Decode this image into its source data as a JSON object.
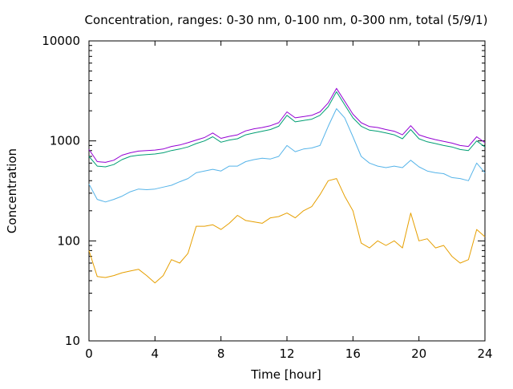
{
  "chart_data": {
    "type": "line",
    "title": "Concentration, ranges: 0-30 nm, 0-100 nm, 0-300 nm, total (5/9/1)",
    "xlabel": "Time [hour]",
    "ylabel": "Concentration",
    "xlim": [
      0,
      24
    ],
    "ylim": [
      10,
      10000
    ],
    "yscale": "log",
    "grid": false,
    "legend": "none",
    "x_ticks": [
      0,
      4,
      8,
      12,
      16,
      20,
      24
    ],
    "x_tick_labels": [
      "0",
      "4",
      "8",
      "12",
      "16",
      "20",
      "24"
    ],
    "y_ticks": [
      10,
      100,
      1000,
      10000
    ],
    "y_tick_labels": [
      "10",
      "100",
      "1000",
      "10000"
    ],
    "x": [
      0,
      0.5,
      1,
      1.5,
      2,
      2.5,
      3,
      3.5,
      4,
      4.5,
      5,
      5.5,
      6,
      6.5,
      7,
      7.5,
      8,
      8.5,
      9,
      9.5,
      10,
      10.5,
      11,
      11.5,
      12,
      12.5,
      13,
      13.5,
      14,
      14.5,
      15,
      15.5,
      16,
      16.5,
      17,
      17.5,
      18,
      18.5,
      19,
      19.5,
      20,
      20.5,
      21,
      21.5,
      22,
      22.5,
      23,
      23.5,
      24
    ],
    "series": [
      {
        "color": "#e69f00",
        "values": [
          80,
          44,
          43,
          45,
          48,
          50,
          52,
          45,
          38,
          45,
          65,
          60,
          75,
          140,
          140,
          145,
          130,
          150,
          180,
          160,
          155,
          150,
          170,
          175,
          190,
          170,
          200,
          220,
          290,
          400,
          420,
          280,
          200,
          95,
          85,
          100,
          90,
          100,
          85,
          190,
          100,
          105,
          85,
          90,
          70,
          60,
          65,
          130,
          110
        ]
      },
      {
        "color": "#56b4e9",
        "values": [
          370,
          260,
          245,
          260,
          280,
          310,
          330,
          325,
          330,
          345,
          360,
          390,
          420,
          480,
          500,
          520,
          500,
          560,
          560,
          620,
          650,
          670,
          660,
          700,
          900,
          780,
          830,
          850,
          900,
          1400,
          2100,
          1700,
          1100,
          700,
          600,
          560,
          540,
          560,
          540,
          640,
          550,
          500,
          480,
          470,
          430,
          420,
          400,
          600,
          480
        ]
      },
      {
        "color": "#009e73",
        "values": [
          700,
          560,
          550,
          580,
          650,
          700,
          720,
          730,
          740,
          760,
          800,
          830,
          870,
          940,
          1000,
          1100,
          970,
          1020,
          1050,
          1150,
          1200,
          1250,
          1300,
          1400,
          1800,
          1550,
          1600,
          1650,
          1800,
          2200,
          3100,
          2300,
          1700,
          1400,
          1280,
          1250,
          1200,
          1150,
          1050,
          1300,
          1050,
          980,
          940,
          900,
          870,
          820,
          800,
          1000,
          870
        ]
      },
      {
        "color": "#9400d3",
        "values": [
          820,
          620,
          610,
          640,
          720,
          760,
          790,
          800,
          810,
          830,
          880,
          910,
          960,
          1020,
          1080,
          1200,
          1060,
          1110,
          1150,
          1260,
          1320,
          1360,
          1420,
          1520,
          1950,
          1700,
          1750,
          1800,
          1950,
          2400,
          3350,
          2500,
          1850,
          1520,
          1390,
          1360,
          1300,
          1250,
          1150,
          1420,
          1150,
          1080,
          1030,
          990,
          950,
          900,
          880,
          1100,
          960
        ]
      }
    ]
  }
}
